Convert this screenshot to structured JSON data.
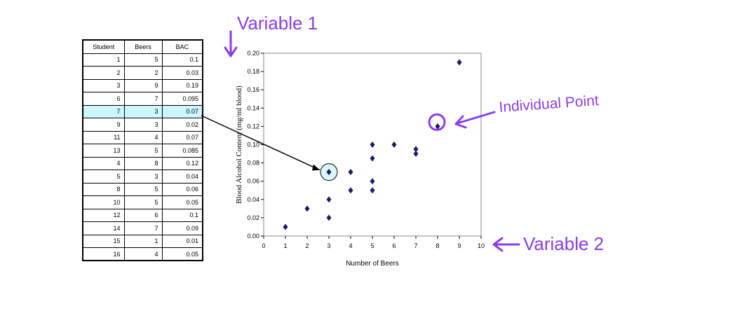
{
  "table": {
    "headers": [
      "Student",
      "Beers",
      "BAC"
    ],
    "rows": [
      [
        "1",
        "5",
        "0.1"
      ],
      [
        "2",
        "2",
        "0.03"
      ],
      [
        "3",
        "9",
        "0.19"
      ],
      [
        "6",
        "7",
        "0.095"
      ],
      [
        "7",
        "3",
        "0.07"
      ],
      [
        "9",
        "3",
        "0.02"
      ],
      [
        "11",
        "4",
        "0.07"
      ],
      [
        "13",
        "5",
        "0.085"
      ],
      [
        "4",
        "8",
        "0.12"
      ],
      [
        "5",
        "3",
        "0.04"
      ],
      [
        "8",
        "5",
        "0.06"
      ],
      [
        "10",
        "5",
        "0.05"
      ],
      [
        "12",
        "6",
        "0.1"
      ],
      [
        "14",
        "7",
        "0.09"
      ],
      [
        "15",
        "1",
        "0.01"
      ],
      [
        "16",
        "4",
        "0.05"
      ]
    ],
    "highlighted_row": 4
  },
  "chart_data": {
    "type": "scatter",
    "title": "",
    "xlabel": "Number of Beers",
    "ylabel": "Blood Alcohol Content (mg/ml blood)",
    "xlim": [
      0,
      10
    ],
    "ylim": [
      0,
      0.2
    ],
    "x_ticks": [
      "0",
      "1",
      "2",
      "3",
      "4",
      "5",
      "6",
      "7",
      "8",
      "9",
      "10"
    ],
    "y_ticks": [
      "0.00",
      "0.02",
      "0.04",
      "0.06",
      "0.08",
      "0.10",
      "0.12",
      "0.14",
      "0.16",
      "0.18",
      "0.20"
    ],
    "grid": false,
    "marker": "diamond",
    "marker_color": "#1a1a6e",
    "points": [
      {
        "x": 5,
        "y": 0.1
      },
      {
        "x": 2,
        "y": 0.03
      },
      {
        "x": 9,
        "y": 0.19
      },
      {
        "x": 7,
        "y": 0.095
      },
      {
        "x": 3,
        "y": 0.07
      },
      {
        "x": 3,
        "y": 0.02
      },
      {
        "x": 4,
        "y": 0.07
      },
      {
        "x": 5,
        "y": 0.085
      },
      {
        "x": 8,
        "y": 0.12
      },
      {
        "x": 3,
        "y": 0.04
      },
      {
        "x": 5,
        "y": 0.06
      },
      {
        "x": 5,
        "y": 0.05
      },
      {
        "x": 6,
        "y": 0.1
      },
      {
        "x": 7,
        "y": 0.09
      },
      {
        "x": 1,
        "y": 0.01
      },
      {
        "x": 4,
        "y": 0.05
      }
    ],
    "highlighted_point": {
      "x": 3,
      "y": 0.07
    },
    "individual_point": {
      "x": 8,
      "y": 0.12
    }
  },
  "annotations": {
    "variable1": "Variable 1",
    "variable2": "Variable 2",
    "individual_point": "Individual Point",
    "color": "#8a3cf0"
  }
}
